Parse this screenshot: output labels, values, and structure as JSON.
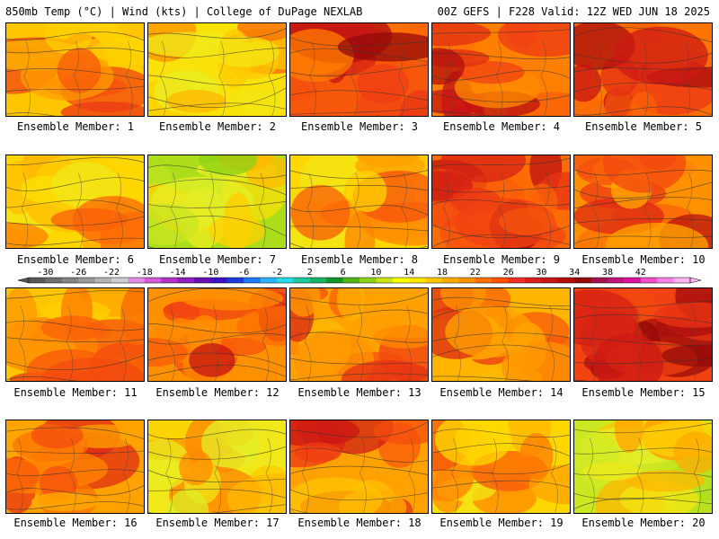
{
  "header": {
    "left": "850mb Temp (°C) | Wind (kts) | College of DuPage NEXLAB",
    "right": "00Z GEFS | F228 Valid: 12Z WED JUN 18 2025"
  },
  "members": [
    {
      "label": "Ensemble Member: 1",
      "warmth": 0.45
    },
    {
      "label": "Ensemble Member: 2",
      "warmth": 0.35
    },
    {
      "label": "Ensemble Member: 3",
      "warmth": 0.75
    },
    {
      "label": "Ensemble Member: 4",
      "warmth": 0.65
    },
    {
      "label": "Ensemble Member: 5",
      "warmth": 0.7
    },
    {
      "label": "Ensemble Member: 6",
      "warmth": 0.4
    },
    {
      "label": "Ensemble Member: 7",
      "warmth": 0.15
    },
    {
      "label": "Ensemble Member: 8",
      "warmth": 0.4
    },
    {
      "label": "Ensemble Member: 9",
      "warmth": 0.7
    },
    {
      "label": "Ensemble Member: 10",
      "warmth": 0.6
    },
    {
      "label": "Ensemble Member: 11",
      "warmth": 0.45
    },
    {
      "label": "Ensemble Member: 12",
      "warmth": 0.6
    },
    {
      "label": "Ensemble Member: 13",
      "warmth": 0.55
    },
    {
      "label": "Ensemble Member: 14",
      "warmth": 0.5
    },
    {
      "label": "Ensemble Member: 15",
      "warmth": 0.8
    },
    {
      "label": "Ensemble Member: 16",
      "warmth": 0.55
    },
    {
      "label": "Ensemble Member: 17",
      "warmth": 0.3
    },
    {
      "label": "Ensemble Member: 18",
      "warmth": 0.55
    },
    {
      "label": "Ensemble Member: 19",
      "warmth": 0.4
    },
    {
      "label": "Ensemble Member: 20",
      "warmth": 0.2
    }
  ],
  "colorbar": {
    "ticks": [
      "-30",
      "-26",
      "-22",
      "-18",
      "-14",
      "-10",
      "-6",
      "-2",
      "2",
      "6",
      "10",
      "14",
      "18",
      "22",
      "26",
      "30",
      "34",
      "38",
      "42"
    ],
    "colors": [
      "#585858",
      "#6e6e6e",
      "#848484",
      "#9a9a9a",
      "#b4b4b4",
      "#cfcfcf",
      "#e28ce4",
      "#d25ad6",
      "#b430c8",
      "#8c20c0",
      "#6410b4",
      "#3c14c8",
      "#1e3cdc",
      "#1e78ff",
      "#2ab4ff",
      "#28dce6",
      "#20c8a0",
      "#18b464",
      "#109628",
      "#50b414",
      "#8cd214",
      "#c8e614",
      "#ffff00",
      "#ffe600",
      "#ffc800",
      "#ffaa00",
      "#ff9000",
      "#ff7000",
      "#ff5000",
      "#f03020",
      "#dc1c1c",
      "#c81414",
      "#b40a0a",
      "#960a0a",
      "#a01450",
      "#c01478",
      "#dc14a0",
      "#f050c8",
      "#ff82e6",
      "#ffb4f0"
    ]
  }
}
